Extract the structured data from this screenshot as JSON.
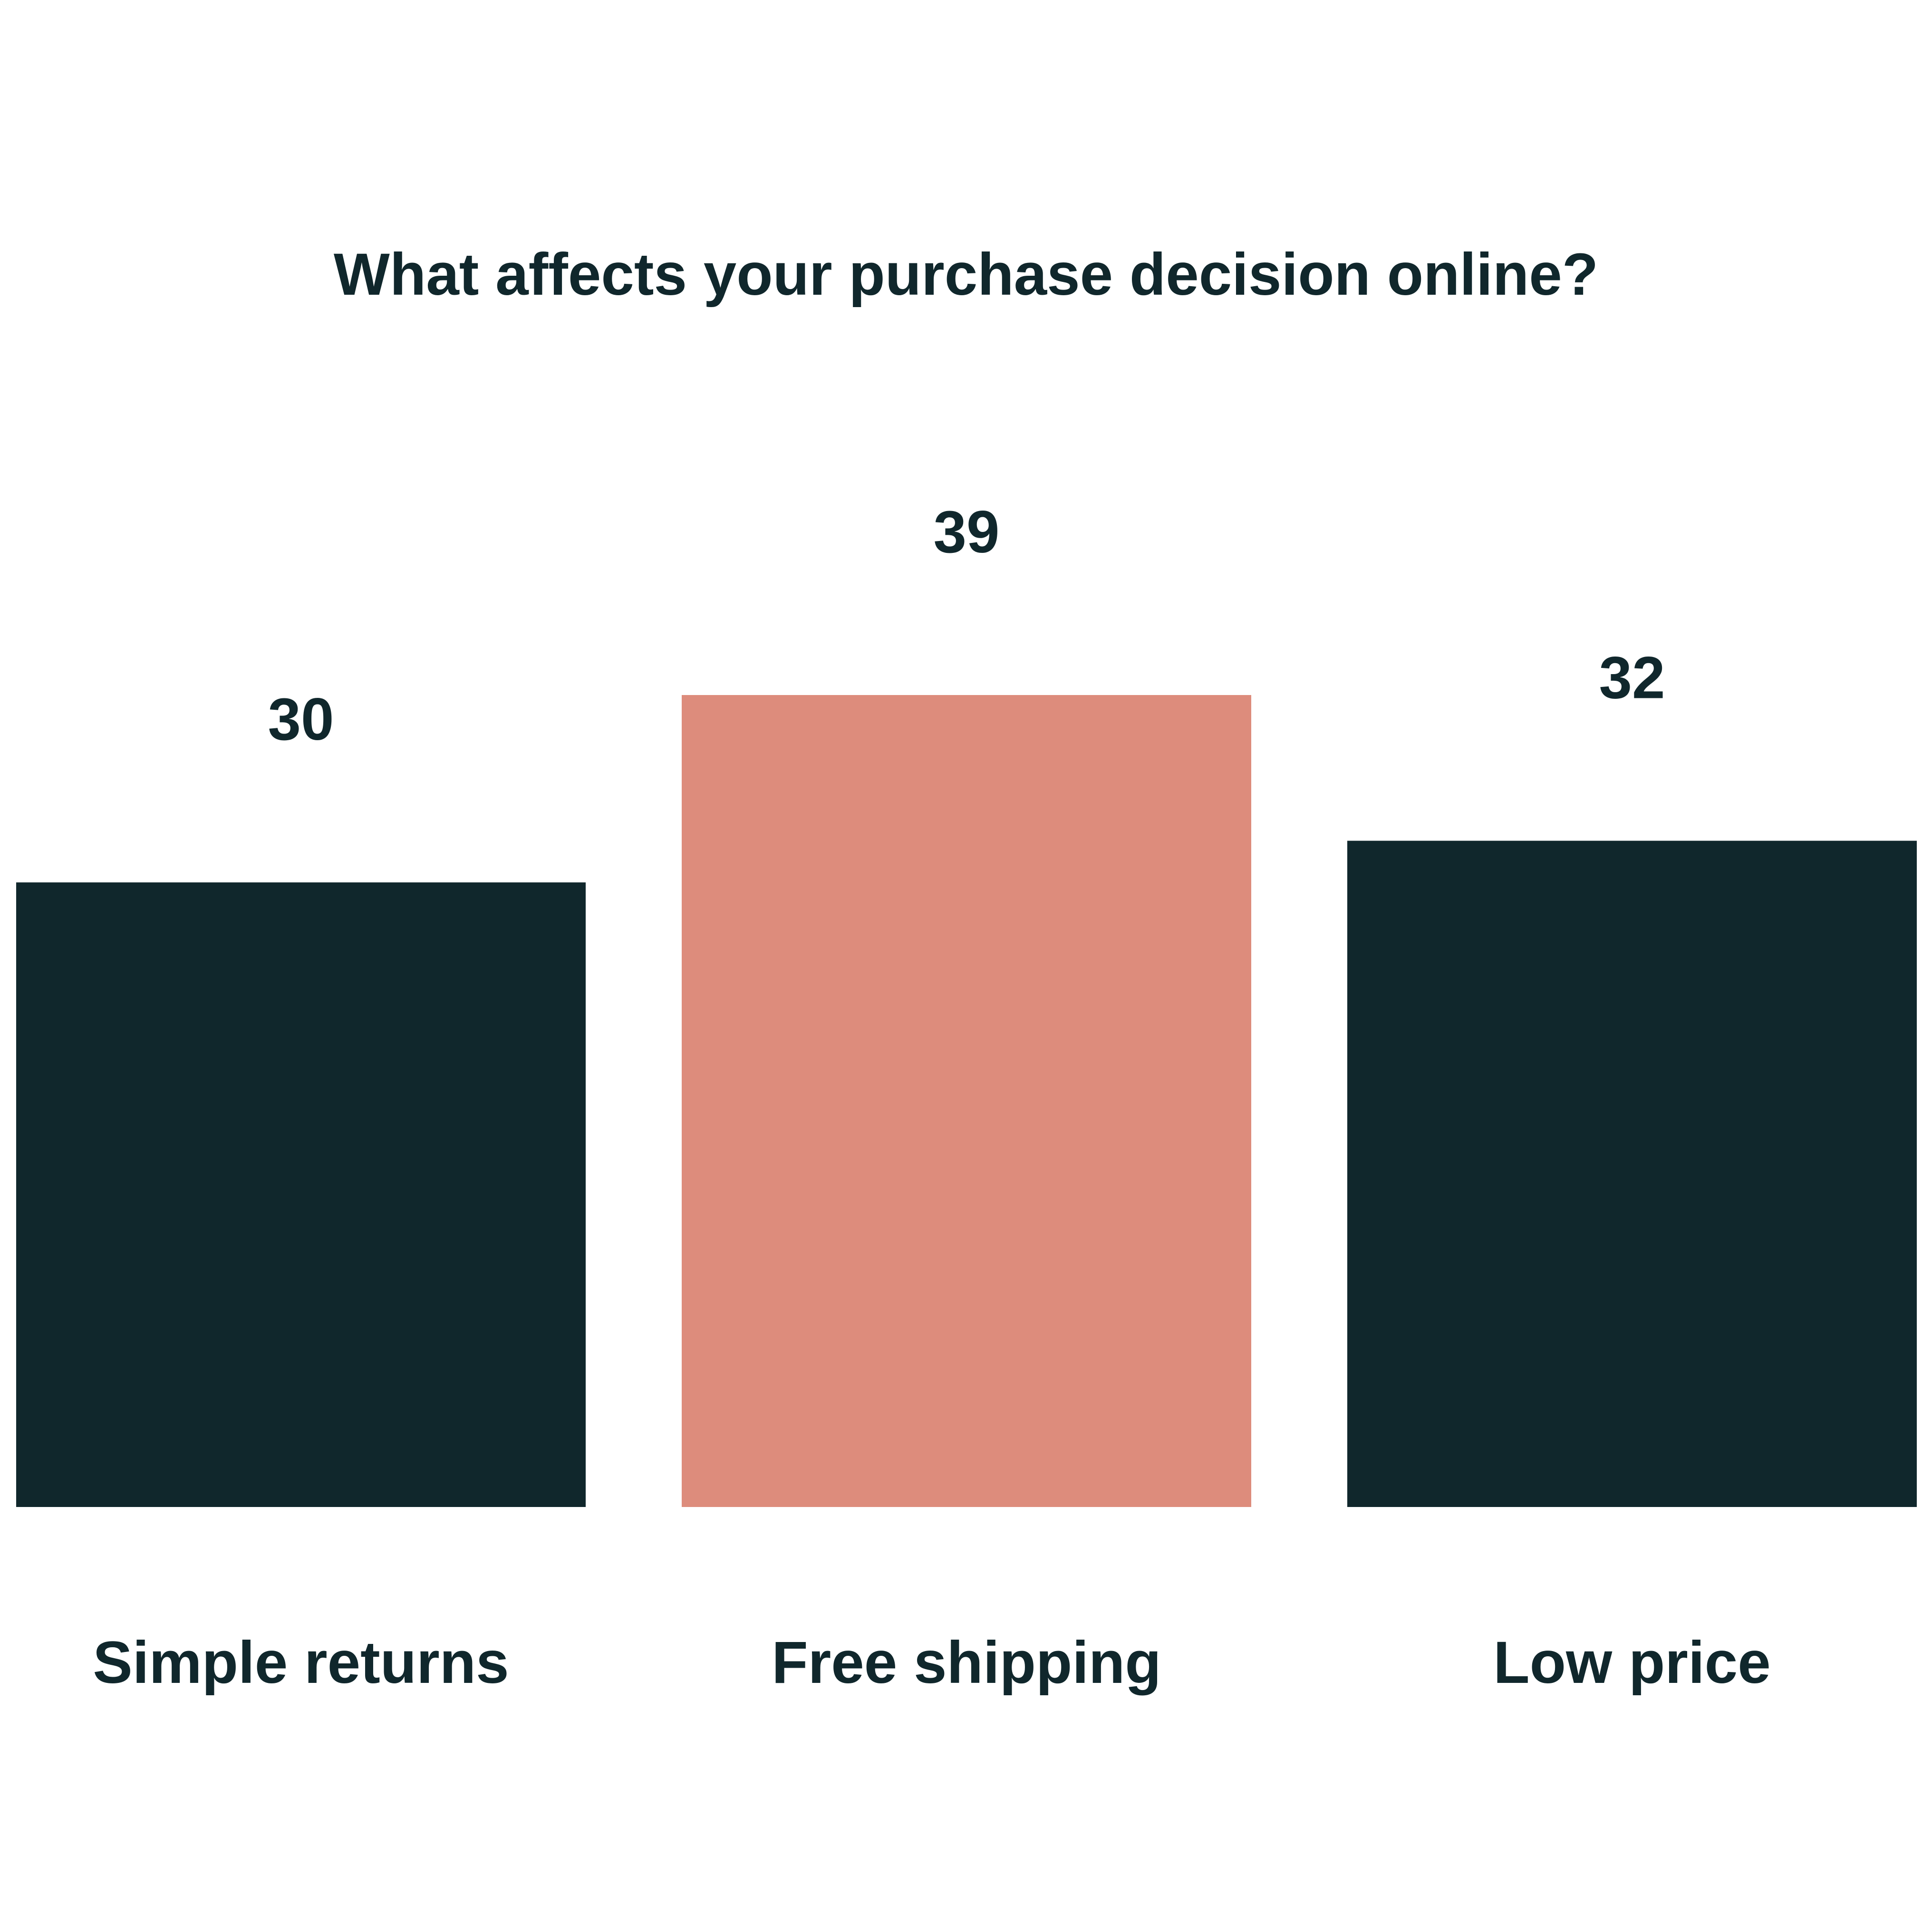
{
  "chart_data": {
    "type": "bar",
    "title": "What affects your purchase decision online?",
    "xlabel": "",
    "ylabel": "",
    "categories": [
      "Simple returns",
      "Free shipping",
      "Low price"
    ],
    "values": [
      30,
      39,
      32
    ],
    "value_labels": [
      "30",
      "39",
      "32"
    ],
    "highlight_index": 1,
    "ylim": [
      0,
      40
    ],
    "grid": false,
    "legend": "none",
    "colors": {
      "bar": "#10272c",
      "highlight": "#dd8c7c",
      "text": "#10272c",
      "background": "#ffffff"
    }
  }
}
